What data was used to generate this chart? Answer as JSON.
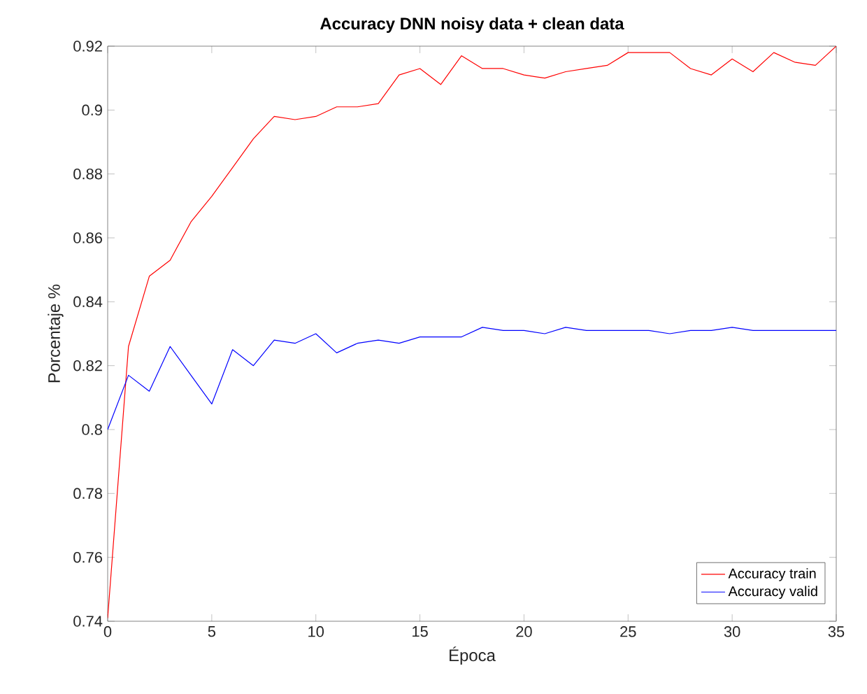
{
  "chart_data": {
    "type": "line",
    "title": "Accuracy DNN noisy data + clean data",
    "xlabel": "Época",
    "ylabel": "Porcentaje %",
    "x": [
      0,
      1,
      2,
      3,
      4,
      5,
      6,
      7,
      8,
      9,
      10,
      11,
      12,
      13,
      14,
      15,
      16,
      17,
      18,
      19,
      20,
      21,
      22,
      23,
      24,
      25,
      26,
      27,
      28,
      29,
      30,
      31,
      32,
      33,
      34,
      35
    ],
    "series": [
      {
        "name": "Accuracy train",
        "color": "#ff0000",
        "values": [
          0.741,
          0.826,
          0.848,
          0.853,
          0.865,
          0.873,
          0.882,
          0.891,
          0.898,
          0.897,
          0.898,
          0.901,
          0.901,
          0.902,
          0.911,
          0.913,
          0.908,
          0.917,
          0.913,
          0.913,
          0.911,
          0.91,
          0.912,
          0.913,
          0.914,
          0.918,
          0.918,
          0.918,
          0.913,
          0.911,
          0.916,
          0.912,
          0.918,
          0.915,
          0.914,
          0.92
        ]
      },
      {
        "name": "Accuracy valid",
        "color": "#0000ff",
        "values": [
          0.8,
          0.817,
          0.812,
          0.826,
          0.817,
          0.808,
          0.825,
          0.82,
          0.828,
          0.827,
          0.83,
          0.824,
          0.827,
          0.828,
          0.827,
          0.829,
          0.829,
          0.829,
          0.832,
          0.831,
          0.831,
          0.83,
          0.832,
          0.831,
          0.831,
          0.831,
          0.831,
          0.83,
          0.831,
          0.831,
          0.832,
          0.831,
          0.831,
          0.831,
          0.831,
          0.831
        ]
      }
    ],
    "xlim": [
      0,
      35
    ],
    "ylim": [
      0.74,
      0.92
    ],
    "xticks": [
      0,
      5,
      10,
      15,
      20,
      25,
      30,
      35
    ],
    "yticks": [
      0.74,
      0.76,
      0.78,
      0.8,
      0.82,
      0.84,
      0.86,
      0.88,
      0.9,
      0.92
    ],
    "grid": false,
    "legend": "bottom right",
    "marker": "none",
    "line_style": "solid"
  }
}
